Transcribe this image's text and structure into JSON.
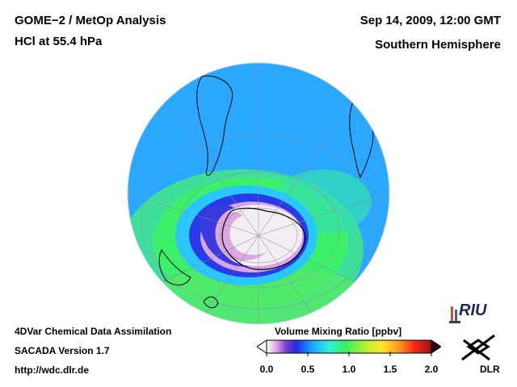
{
  "header": {
    "title": "GOME−2 / MetOp Analysis",
    "subtitle": "HCl at 55.4 hPa",
    "datetime": "Sep 14, 2009, 12:00 GMT",
    "region": "Southern Hemisphere"
  },
  "footer": {
    "line1": "4DVar Chemical Data Assimilation",
    "line2": "SACADA Version 1.7",
    "line3": "http://wdc.dlr.de"
  },
  "colorbar": {
    "title": "Volume Mixing Ratio [ppbv]",
    "ticks": [
      "0.0",
      "0.5",
      "1.0",
      "1.5",
      "2.0"
    ],
    "tick_values": [
      0.0,
      0.5,
      1.0,
      1.5,
      2.0
    ],
    "range": [
      0.0,
      2.0
    ]
  },
  "logos": {
    "riu": "RIU",
    "dlr": "DLR"
  },
  "colors": {
    "background_field": "#2aa8ff",
    "vortex_edge": "#2020e0",
    "polar_core": "#f4eef2",
    "coast": "#000000"
  }
}
